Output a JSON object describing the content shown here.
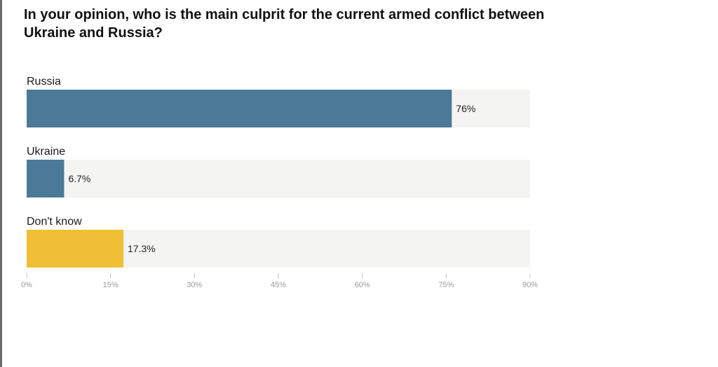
{
  "title": "In your opinion, who is the main culprit for the current armed conflict between Ukraine and Russia?",
  "chart_data": {
    "type": "bar",
    "orientation": "horizontal",
    "title": "In your opinion, who is the main culprit for the current armed conflict between Ukraine and Russia?",
    "categories": [
      "Russia",
      "Ukraine",
      "Don't know"
    ],
    "values": [
      76,
      6.7,
      17.3
    ],
    "value_labels": [
      "76%",
      "6.7%",
      "17.3%"
    ],
    "colors": [
      "#4b7a98",
      "#4b7a98",
      "#f0bf35"
    ],
    "track_color": "#f4f4f3",
    "xlim": [
      0,
      90
    ],
    "xticks": [
      0,
      15,
      30,
      45,
      60,
      75,
      90
    ],
    "xtick_labels": [
      "0%",
      "15%",
      "30%",
      "45%",
      "60%",
      "75%",
      "90%"
    ],
    "grid": false,
    "legend": "none"
  }
}
